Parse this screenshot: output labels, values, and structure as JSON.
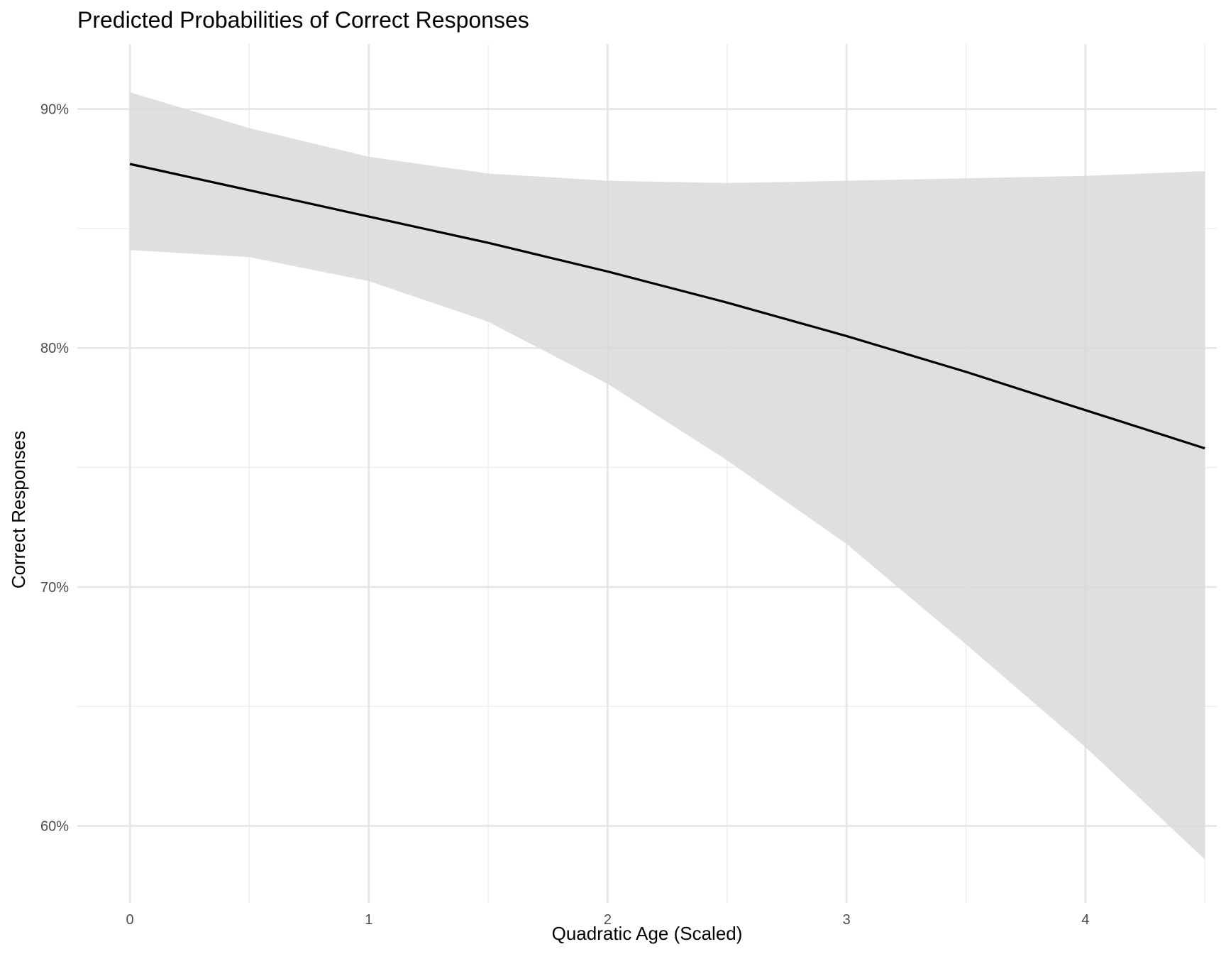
{
  "chart_data": {
    "type": "line",
    "title": "Predicted Probabilities of Correct Responses",
    "xlabel": "Quadratic Age (Scaled)",
    "ylabel": "Correct Responses",
    "xlim": [
      -0.22,
      4.55
    ],
    "ylim": [
      0.5678,
      0.9272
    ],
    "x_ticks": [
      0,
      1,
      2,
      3,
      4
    ],
    "x_tick_labels": [
      "0",
      "1",
      "2",
      "3",
      "4"
    ],
    "x_minor_ticks": [
      0.5,
      1.5,
      2.5,
      3.5,
      4.5
    ],
    "y_ticks": [
      0.6,
      0.7,
      0.8,
      0.9
    ],
    "y_tick_labels": [
      "60%",
      "70%",
      "80%",
      "90%"
    ],
    "y_minor_ticks": [
      0.65,
      0.75,
      0.85
    ],
    "grid": true,
    "legend": "none",
    "series": [
      {
        "x": [
          0,
          0.5,
          1,
          1.5,
          2,
          2.5,
          3,
          3.5,
          4,
          4.5
        ],
        "values": [
          0.877,
          0.866,
          0.855,
          0.844,
          0.832,
          0.819,
          0.805,
          0.79,
          0.774,
          0.758
        ],
        "lower": [
          0.841,
          0.838,
          0.828,
          0.811,
          0.785,
          0.753,
          0.718,
          0.676,
          0.633,
          0.586
        ],
        "upper": [
          0.907,
          0.892,
          0.88,
          0.873,
          0.87,
          0.869,
          0.87,
          0.871,
          0.872,
          0.874
        ],
        "line_color": "#000000",
        "band_color": "#d9d9d9"
      }
    ]
  }
}
